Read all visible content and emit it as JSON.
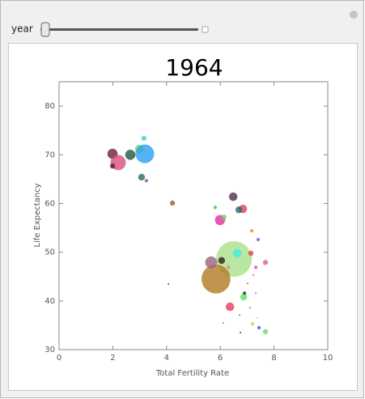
{
  "control": {
    "label": "year"
  },
  "chart_data": {
    "type": "bubble",
    "title": "1964",
    "x_label": "Total Fertility Rate",
    "y_label": "Life Expectancy",
    "xlim": [
      0,
      10
    ],
    "xticks": [
      0,
      2,
      4,
      6,
      8,
      10
    ],
    "ylim": [
      30,
      85
    ],
    "yticks": [
      30,
      40,
      50,
      60,
      70,
      80
    ],
    "x": [
      1.99,
      2.2,
      1.99,
      2.65,
      2.98,
      3.19,
      3.16,
      3.07,
      3.25,
      4.22,
      4.07,
      5.81,
      6.48,
      5.99,
      6.14,
      6.51,
      5.84,
      5.66,
      6.05,
      6.84,
      6.69,
      6.63,
      6.36,
      6.87,
      6.9,
      6.72,
      7.14,
      7.68,
      7.32,
      7.41,
      7.17,
      7.2,
      7.68,
      7.44,
      6.75,
      6.11,
      7.32,
      7.11,
      7.35,
      7.23,
      6.3,
      7.02
    ],
    "values": [
      70.2,
      68.4,
      67.7,
      70.0,
      71.2,
      70.2,
      73.4,
      65.4,
      64.7,
      60.1,
      43.5,
      59.2,
      61.4,
      56.6,
      57.2,
      48.6,
      44.5,
      47.9,
      48.3,
      58.9,
      58.7,
      49.8,
      38.8,
      40.8,
      41.6,
      37.1,
      49.8,
      47.9,
      46.9,
      52.6,
      54.4,
      35.3,
      33.7,
      34.5,
      33.5,
      35.5,
      41.6,
      38.6,
      36.5,
      45.3,
      46.9,
      43.6
    ],
    "sizes": [
      6,
      9,
      3,
      6,
      5,
      11,
      3,
      4,
      2,
      3,
      1,
      2,
      5,
      6,
      3,
      21,
      17,
      7,
      4,
      5,
      4,
      5,
      5,
      4,
      2,
      1,
      3,
      3,
      2,
      2,
      2,
      2,
      3,
      2,
      1,
      1,
      1,
      1,
      1,
      1,
      2,
      1
    ],
    "colors": [
      "#6b1e3a",
      "#d9507a",
      "#5a1a2a",
      "#1f5a3a",
      "#7fd66a",
      "#2aa0f0",
      "#40d0e0",
      "#2a6a6a",
      "#9a40a0",
      "#a06020",
      "#402040",
      "#40c040",
      "#503050",
      "#e030a0",
      "#60e060",
      "#a8e08a",
      "#b07a20",
      "#9a6080",
      "#302020",
      "#e04050",
      "#206a70",
      "#40f0e0",
      "#e04060",
      "#60e060",
      "#203020",
      "#8060a0",
      "#e04040",
      "#e06080",
      "#e040c0",
      "#a040e0",
      "#e09040",
      "#b0e040",
      "#60e060",
      "#4040e0",
      "#202020",
      "#6060a0",
      "#9060e0",
      "#a06020",
      "#e0d040",
      "#806060",
      "#f070a0",
      "#b04040"
    ]
  }
}
